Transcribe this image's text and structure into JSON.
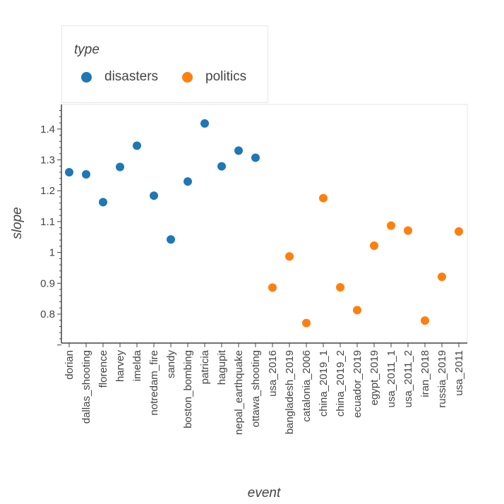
{
  "chart_data": {
    "type": "scatter",
    "xlabel": "event",
    "ylabel": "slope",
    "legend_title": "type",
    "legend_placement": "top-left (above plot)",
    "grid": false,
    "ylim": [
      0.7,
      1.47
    ],
    "yticks": [
      "0.8",
      "0.9",
      "1",
      "1.1",
      "1.2",
      "1.3",
      "1.4"
    ],
    "categories": [
      "dorian",
      "dallas_shooting",
      "florence",
      "harvey",
      "imelda",
      "notredam_fire",
      "sandy",
      "boston_bombing",
      "patricia",
      "hagupit",
      "nepal_earthquake",
      "ottawa_shooting",
      "usa_2016",
      "bangladesh_2019",
      "catalonia_2006",
      "china_2019_1",
      "china_2019_2",
      "ecuador_2019",
      "egypt_2019",
      "usa_2011_1",
      "usa_2011_2",
      "iran_2018",
      "russia_2019",
      "usa_2011"
    ],
    "series": [
      {
        "name": "disasters",
        "color": "#1f77b4",
        "points": [
          {
            "x": "dorian",
            "y": 1.26
          },
          {
            "x": "dallas_shooting",
            "y": 1.253
          },
          {
            "x": "florence",
            "y": 1.163
          },
          {
            "x": "harvey",
            "y": 1.277
          },
          {
            "x": "imelda",
            "y": 1.346
          },
          {
            "x": "notredam_fire",
            "y": 1.184
          },
          {
            "x": "sandy",
            "y": 1.042
          },
          {
            "x": "boston_bombing",
            "y": 1.23
          },
          {
            "x": "patricia",
            "y": 1.418
          },
          {
            "x": "hagupit",
            "y": 1.279
          },
          {
            "x": "nepal_earthquake",
            "y": 1.33
          },
          {
            "x": "ottawa_shooting",
            "y": 1.307
          }
        ]
      },
      {
        "name": "politics",
        "color": "#ff7f0e",
        "points": [
          {
            "x": "usa_2016",
            "y": 0.886
          },
          {
            "x": "bangladesh_2019",
            "y": 0.987
          },
          {
            "x": "catalonia_2006",
            "y": 0.771
          },
          {
            "x": "china_2019_1",
            "y": 1.176
          },
          {
            "x": "china_2019_2",
            "y": 0.887
          },
          {
            "x": "ecuador_2019",
            "y": 0.813
          },
          {
            "x": "egypt_2019",
            "y": 1.022
          },
          {
            "x": "usa_2011_1",
            "y": 1.087
          },
          {
            "x": "usa_2011_2",
            "y": 1.071
          },
          {
            "x": "iran_2018",
            "y": 0.779
          },
          {
            "x": "russia_2019",
            "y": 0.921
          },
          {
            "x": "usa_2011",
            "y": 1.068
          }
        ]
      }
    ]
  }
}
